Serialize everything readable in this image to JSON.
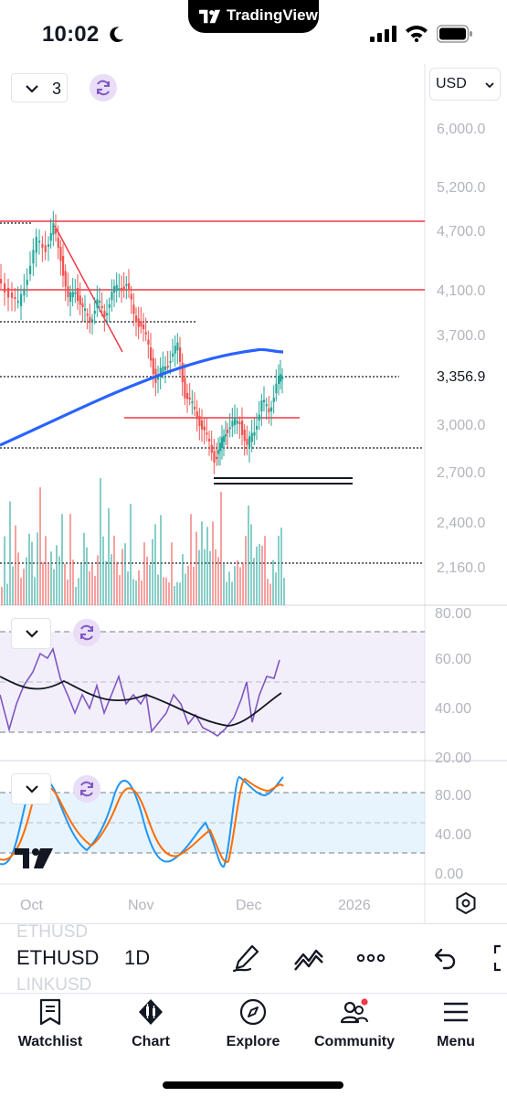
{
  "status_bar": {
    "time": "10:02",
    "app_pill": "TradingView"
  },
  "chart": {
    "currency": "USD",
    "indicator_count": "3",
    "price_axis": [
      "6,000.0",
      "5,200.0",
      "4,700.0",
      "4,100.0",
      "3,700.0",
      "3,000.0",
      "2,700.0",
      "2,400.0",
      "2,160.0"
    ],
    "last_price": "3,356.9",
    "rsi_axis": [
      "80.00",
      "60.00",
      "40.00",
      "20.00"
    ],
    "stoch_axis": [
      "80.00",
      "40.00",
      "0.00"
    ],
    "time_axis": [
      "Oct",
      "Nov",
      "Dec",
      "2026"
    ],
    "colors": {
      "up": "#26a69a",
      "down": "#ef5350",
      "ma": "#2962ff",
      "rsi": "#7e57c2",
      "stoch_k": "#2196f3",
      "stoch_d": "#ff6d00",
      "hline": "#f23645"
    }
  },
  "symbol_bar": {
    "symbol": "ETHUSD",
    "interval": "1D",
    "ghost_prev": "ETHUSD",
    "ghost_next": "LINKUSD",
    "tools": [
      "pen-icon",
      "indicator-icon",
      "more-icon",
      "undo-icon"
    ]
  },
  "nav": [
    {
      "label": "Watchlist",
      "icon": "watchlist-icon"
    },
    {
      "label": "Chart",
      "icon": "chart-icon"
    },
    {
      "label": "Explore",
      "icon": "compass-icon"
    },
    {
      "label": "Community",
      "icon": "community-icon"
    },
    {
      "label": "Menu",
      "icon": "menu-icon"
    }
  ]
}
